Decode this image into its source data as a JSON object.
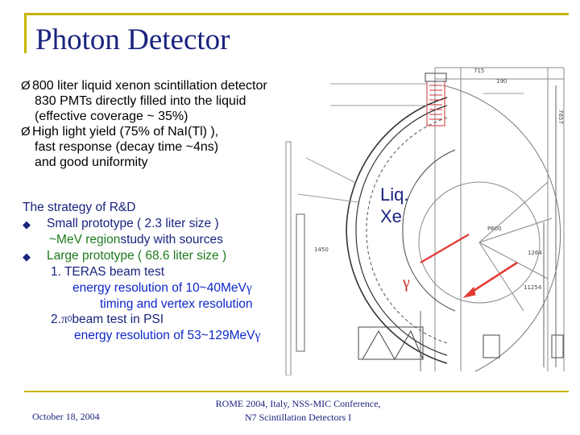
{
  "slide": {
    "title": "Photon Detector",
    "bullets": [
      {
        "marker": "Ø",
        "lines": [
          "800 liter liquid xenon scintillation detector",
          "830 PMTs directly filled into the liquid",
          "(effective coverage ~ 35%)"
        ]
      },
      {
        "marker": "Ø",
        "lines": [
          "High light yield (75% of NaI(Tl) ),",
          "fast response (decay time ~4ns)",
          "and good uniformity"
        ]
      }
    ],
    "strategy": {
      "heading": "The strategy of R&D",
      "small_prototype": "Small prototype ( 2.3 liter size )",
      "mev_region_a": "~MeV region",
      "mev_region_b": " study with sources",
      "large_prototype": "Large prototype ( 68.6 liter size )",
      "item1": "1.  TERAS beam test",
      "item1_energy": "energy resolution of 10~40MeV ",
      "gamma": "γ",
      "item1_timing": "timing and vertex resolution",
      "item2_prefix": "2.  ",
      "pi": "π",
      "pi_sup": "0",
      "item2_suffix": " beam test in PSI",
      "item2_energy": "energy resolution of 53~129MeV "
    },
    "figure": {
      "liq_line1": "Liq.",
      "liq_line2": "Xe",
      "gamma": "γ",
      "dims": [
        "715",
        "190",
        "7857",
        "11254",
        "1264",
        "P600",
        "1450"
      ]
    },
    "footer": {
      "date": "October 18, 2004",
      "conf_line1": "ROME 2004, Italy, NSS-MIC Conference,",
      "conf_line2": "N7 Scintillation Detectors I"
    },
    "colors": {
      "accent": "#c8b400",
      "title": "#1a237e",
      "arrow": "#e53935"
    }
  }
}
